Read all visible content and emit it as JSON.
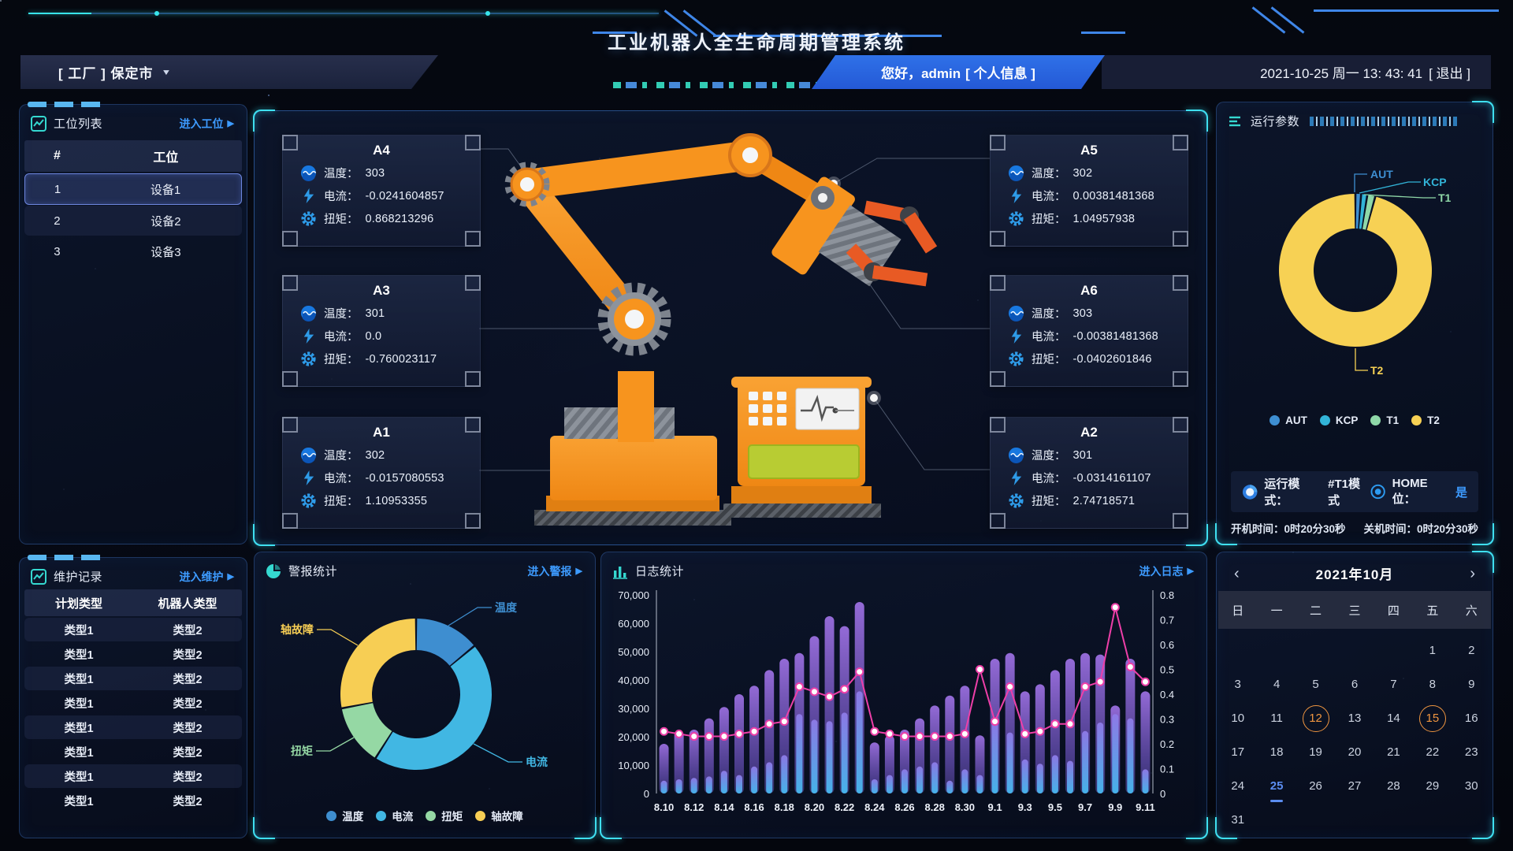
{
  "theme": {
    "accent_blue": "#3d9bff",
    "teal": "#35d8d0",
    "orange": "#f7941e",
    "magenta": "#ed3fa8",
    "bar_purple": "#8f63d2",
    "bar_blue": "#4fc3f7",
    "circle_orange": "#ef9540",
    "selected_blue": "#5b8df0"
  },
  "header": {
    "title": "工业机器人全生命周期管理系统",
    "factory_label": "[ 工厂 ] 保定市",
    "greeting": "您好，admin",
    "profile_label": "[ 个人信息 ]",
    "datetime": "2021-10-25 周一 13: 43: 41",
    "logout_label": "[ 退出 ]"
  },
  "station_panel": {
    "title": "工位列表",
    "link": "进入工位",
    "col_id": "#",
    "col_name": "工位",
    "selected_index": 0,
    "rows": [
      {
        "num": "1",
        "name": "设备1"
      },
      {
        "num": "2",
        "name": "设备2"
      },
      {
        "num": "3",
        "name": "设备3"
      }
    ]
  },
  "maintenance_panel": {
    "title": "维护记录",
    "link": "进入维护",
    "col_plan": "计划类型",
    "col_robot": "机器人类型",
    "rows": [
      {
        "plan": "类型1",
        "robot": "类型2"
      },
      {
        "plan": "类型1",
        "robot": "类型2"
      },
      {
        "plan": "类型1",
        "robot": "类型2"
      },
      {
        "plan": "类型1",
        "robot": "类型2"
      },
      {
        "plan": "类型1",
        "robot": "类型2"
      },
      {
        "plan": "类型1",
        "robot": "类型2"
      },
      {
        "plan": "类型1",
        "robot": "类型2"
      },
      {
        "plan": "类型1",
        "robot": "类型2"
      }
    ]
  },
  "robot_panel": {
    "labels": {
      "temp": "温度：",
      "current": "电流：",
      "torque": "扭矩："
    },
    "axes": [
      {
        "id": "A4",
        "temp": "303",
        "current": "-0.0241604857",
        "torque": "0.868213296"
      },
      {
        "id": "A3",
        "temp": "301",
        "current": "0.0",
        "torque": "-0.760023117"
      },
      {
        "id": "A1",
        "temp": "302",
        "current": "-0.0157080553",
        "torque": "1.10953355"
      },
      {
        "id": "A5",
        "temp": "302",
        "current": "0.00381481368",
        "torque": "1.04957938"
      },
      {
        "id": "A6",
        "temp": "303",
        "current": "-0.00381481368",
        "torque": "-0.0402601846"
      },
      {
        "id": "A2",
        "temp": "301",
        "current": "-0.0314161107",
        "torque": "2.74718571"
      }
    ]
  },
  "params_panel": {
    "title": "运行参数",
    "mode_label": "运行模式：",
    "mode_value": "#T1模式",
    "home_label": "HOME位：",
    "home_value": "是",
    "on_label": "开机时间：",
    "on_value": "0时20分30秒",
    "off_label": "关机时间：",
    "off_value": "0时20分30秒"
  },
  "alarm_panel": {
    "title": "警报统计",
    "link": "进入警报"
  },
  "log_panel": {
    "title": "日志统计",
    "link": "进入日志"
  },
  "calendar": {
    "title": "2021年10月",
    "prev": "‹",
    "next": "›",
    "weekdays": [
      "日",
      "一",
      "二",
      "三",
      "四",
      "五",
      "六"
    ],
    "days_in_month": 31,
    "first_weekday": 5,
    "circled_days": [
      12,
      15
    ],
    "selected_day": 25
  },
  "chart_data": [
    {
      "type": "pie",
      "title": "运行参数",
      "labels": [
        "AUT",
        "KCP",
        "T1",
        "T2"
      ],
      "values": [
        1.2,
        1.3,
        1.7,
        95.8
      ],
      "colors": [
        "#3e8fd2",
        "#32b4d8",
        "#8fd8a8",
        "#f7d154"
      ],
      "legend_position": "bottom"
    },
    {
      "type": "pie",
      "title": "警报统计",
      "labels": [
        "温度",
        "电流",
        "扭矩",
        "轴故障"
      ],
      "values": [
        14,
        45,
        13,
        28
      ],
      "colors": [
        "#3e8ed0",
        "#41b7e3",
        "#95d8a4",
        "#f7ce54"
      ],
      "legend_position": "bottom"
    },
    {
      "type": "bar+line",
      "title": "日志统计",
      "categories": [
        "8.10",
        "8.11",
        "8.12",
        "8.13",
        "8.14",
        "8.15",
        "8.16",
        "8.17",
        "8.18",
        "8.19",
        "8.20",
        "8.21",
        "8.22",
        "8.23",
        "8.24",
        "8.25",
        "8.26",
        "8.27",
        "8.28",
        "8.29",
        "8.30",
        "8.31",
        "9.1",
        "9.2",
        "9.3",
        "9.4",
        "9.5",
        "9.6",
        "9.7",
        "9.8",
        "9.9",
        "9.10",
        "9.11"
      ],
      "series": [
        {
          "name": "bars-purple",
          "axis": "left",
          "values": [
            17500,
            22000,
            22500,
            26500,
            30500,
            35000,
            38000,
            43500,
            47500,
            49500,
            55500,
            62500,
            59000,
            67500,
            18000,
            20500,
            22500,
            26500,
            31000,
            34500,
            38000,
            20500,
            47500,
            49500,
            36000,
            38500,
            43500,
            47500,
            49500,
            49000,
            31000,
            47500,
            36000
          ]
        },
        {
          "name": "bars-blue",
          "axis": "left",
          "values": [
            4500,
            5000,
            5500,
            6000,
            8000,
            6500,
            9500,
            11000,
            13500,
            28000,
            26000,
            25500,
            28500,
            36000,
            5000,
            6500,
            8500,
            9500,
            11000,
            4500,
            8500,
            6500,
            25000,
            21500,
            12000,
            10500,
            13500,
            11500,
            22000,
            25000,
            28000,
            26500,
            8500
          ]
        },
        {
          "name": "line",
          "axis": "right",
          "values": [
            0.25,
            0.24,
            0.23,
            0.23,
            0.23,
            0.24,
            0.25,
            0.28,
            0.29,
            0.43,
            0.41,
            0.39,
            0.42,
            0.49,
            0.25,
            0.24,
            0.23,
            0.23,
            0.23,
            0.23,
            0.24,
            0.5,
            0.29,
            0.43,
            0.24,
            0.25,
            0.28,
            0.28,
            0.43,
            0.45,
            0.75,
            0.51,
            0.45
          ]
        }
      ],
      "ylim_left": [
        0,
        70000
      ],
      "ylim_right": [
        0,
        0.8
      ],
      "y_ticks_left": [
        "0",
        "10,000",
        "20,000",
        "30,000",
        "40,000",
        "50,000",
        "60,000",
        "70,000"
      ],
      "y_ticks_right": [
        "0",
        "0.1",
        "0.2",
        "0.3",
        "0.4",
        "0.5",
        "0.6",
        "0.7",
        "0.8"
      ],
      "label_every": 2,
      "grid": false
    }
  ]
}
